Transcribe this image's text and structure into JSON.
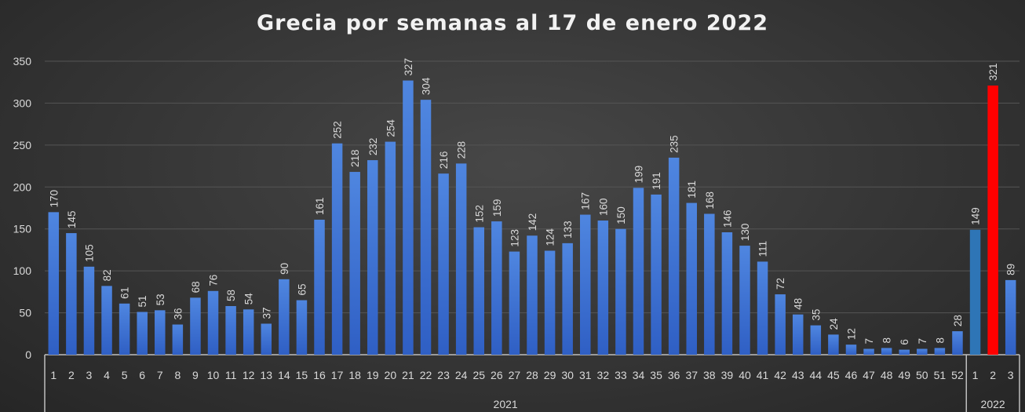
{
  "chart_data": {
    "type": "bar",
    "title": "Grecia por semanas al 17 de enero 2022",
    "xlabel": "",
    "ylabel": "",
    "ylim": [
      0,
      350
    ],
    "yticks": [
      0,
      50,
      100,
      150,
      200,
      250,
      300,
      350
    ],
    "grid": true,
    "legend": "none",
    "groups": [
      {
        "label": "2021",
        "categories": [
          "1",
          "2",
          "3",
          "4",
          "5",
          "6",
          "7",
          "8",
          "9",
          "10",
          "11",
          "12",
          "13",
          "14",
          "15",
          "16",
          "17",
          "18",
          "19",
          "20",
          "21",
          "22",
          "23",
          "24",
          "25",
          "26",
          "27",
          "28",
          "29",
          "30",
          "31",
          "32",
          "33",
          "34",
          "35",
          "36",
          "37",
          "38",
          "39",
          "40",
          "41",
          "42",
          "43",
          "44",
          "45",
          "46",
          "47",
          "48",
          "49",
          "50",
          "51",
          "52"
        ],
        "values": [
          170,
          145,
          105,
          82,
          61,
          51,
          53,
          36,
          68,
          76,
          58,
          54,
          37,
          90,
          65,
          161,
          252,
          218,
          232,
          254,
          327,
          304,
          216,
          228,
          152,
          159,
          123,
          142,
          124,
          133,
          167,
          160,
          150,
          199,
          191,
          235,
          181,
          168,
          146,
          130,
          111,
          72,
          48,
          35,
          24,
          12,
          7,
          8,
          6,
          7,
          8,
          28
        ],
        "colors": []
      },
      {
        "label": "2022",
        "categories": [
          "1",
          "2",
          "3"
        ],
        "values": [
          149,
          321,
          89
        ],
        "colors": [
          "#2e75b6",
          "#ff0000",
          "#4472c4"
        ]
      }
    ],
    "default_color": "#4472c4"
  }
}
